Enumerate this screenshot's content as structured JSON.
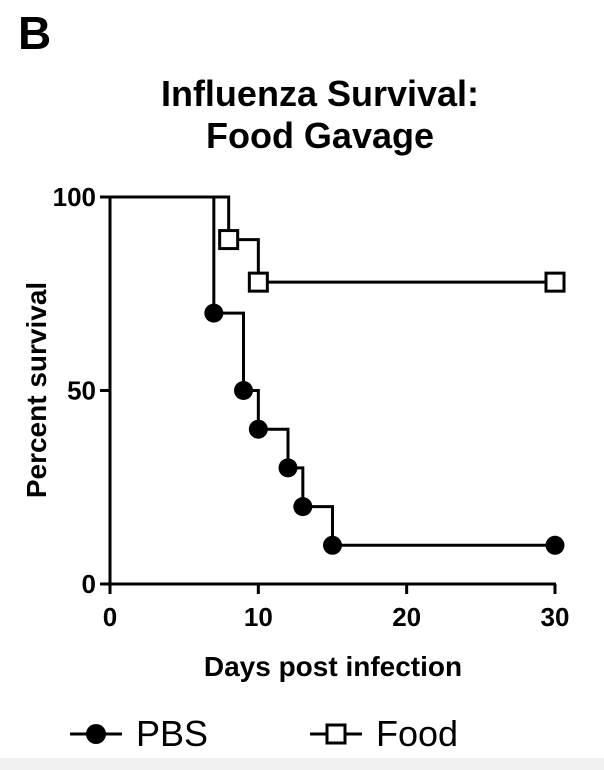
{
  "panel_label": "B",
  "chart_data": {
    "type": "line",
    "step": true,
    "title": [
      "Influenza Survival:",
      "Food Gavage"
    ],
    "xlabel": "Days post infection",
    "ylabel": "Percent survival",
    "xlim": [
      0,
      30
    ],
    "ylim": [
      0,
      100
    ],
    "x_ticks": [
      0,
      10,
      20,
      30
    ],
    "y_ticks": [
      0,
      50,
      100
    ],
    "grid": false,
    "legend_position": "bottom",
    "series": [
      {
        "name": "PBS",
        "marker": "filled-circle",
        "color": "#000000",
        "steps": [
          [
            0,
            100
          ],
          [
            7,
            70
          ],
          [
            9,
            50
          ],
          [
            10,
            40
          ],
          [
            12,
            30
          ],
          [
            13,
            20
          ],
          [
            15,
            10
          ],
          [
            30,
            10
          ]
        ],
        "markers": [
          [
            7,
            70
          ],
          [
            9,
            50
          ],
          [
            10,
            40
          ],
          [
            12,
            30
          ],
          [
            13,
            20
          ],
          [
            15,
            10
          ],
          [
            30,
            10
          ]
        ]
      },
      {
        "name": "Food",
        "marker": "open-square",
        "color": "#000000",
        "steps": [
          [
            0,
            100
          ],
          [
            8,
            89
          ],
          [
            10,
            78
          ],
          [
            30,
            78
          ]
        ],
        "markers": [
          [
            8,
            89
          ],
          [
            10,
            78
          ],
          [
            30,
            78
          ]
        ]
      }
    ]
  }
}
